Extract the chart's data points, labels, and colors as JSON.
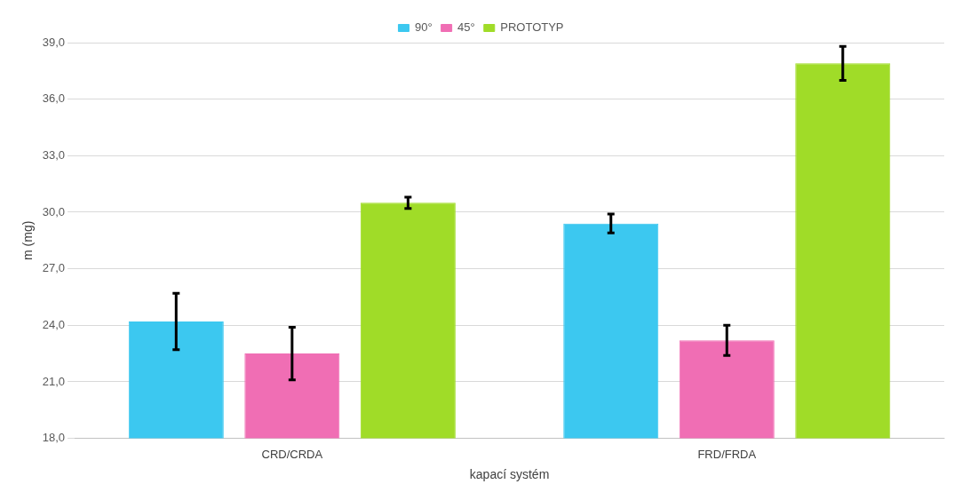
{
  "chart_data": {
    "type": "bar",
    "xlabel": "kapací systém",
    "ylabel": "m (mg)",
    "categories": [
      "CRD/CRDA",
      "FRD/FRDA"
    ],
    "series": [
      {
        "name": "90°",
        "color": "#3cc8f0",
        "values": [
          24.2,
          29.4
        ],
        "errors": [
          1.5,
          0.5
        ]
      },
      {
        "name": "45°",
        "color": "#f06eb4",
        "values": [
          22.5,
          23.2
        ],
        "errors": [
          1.4,
          0.8
        ]
      },
      {
        "name": "PROTOTYP",
        "color": "#a0dc28",
        "values": [
          30.5,
          37.9
        ],
        "errors": [
          0.3,
          0.9
        ]
      }
    ],
    "ylim": [
      18,
      39
    ],
    "yticks": [
      {
        "value": 18,
        "label": "18,0"
      },
      {
        "value": 21,
        "label": "21,0"
      },
      {
        "value": 24,
        "label": "24,0"
      },
      {
        "value": 27,
        "label": "27,0"
      },
      {
        "value": 30,
        "label": "30,0"
      },
      {
        "value": 33,
        "label": "33,0"
      },
      {
        "value": 36,
        "label": "36,0"
      },
      {
        "value": 39,
        "label": "39,0"
      }
    ],
    "grid": "y",
    "legend": "top"
  }
}
